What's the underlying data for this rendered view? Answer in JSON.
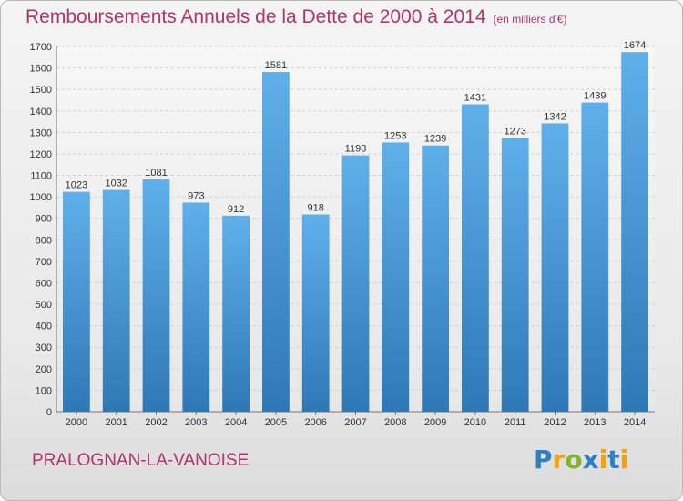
{
  "chart_data": {
    "type": "bar",
    "title": "Remboursements Annuels de la Dette de 2000 à 2014",
    "subtitle": "(en milliers d'€)",
    "categories": [
      "2000",
      "2001",
      "2002",
      "2003",
      "2004",
      "2005",
      "2006",
      "2007",
      "2008",
      "2009",
      "2010",
      "2011",
      "2012",
      "2013",
      "2014"
    ],
    "values": [
      1023,
      1032,
      1081,
      973,
      912,
      1581,
      918,
      1193,
      1253,
      1239,
      1431,
      1273,
      1342,
      1439,
      1674
    ],
    "ylim": [
      0,
      1700
    ],
    "yticks": [
      0,
      100,
      200,
      300,
      400,
      500,
      600,
      700,
      800,
      900,
      1000,
      1100,
      1200,
      1300,
      1400,
      1500,
      1600,
      1700
    ],
    "grid": true,
    "bar_color": "#4d9fdc"
  },
  "footer": {
    "commune": "PRALOGNAN-LA-VANOISE",
    "logo_text": "Proxiti"
  },
  "colors": {
    "title": "#b0336e",
    "bar_light": "#5fb0ea",
    "bar_dark": "#2e78b6"
  }
}
